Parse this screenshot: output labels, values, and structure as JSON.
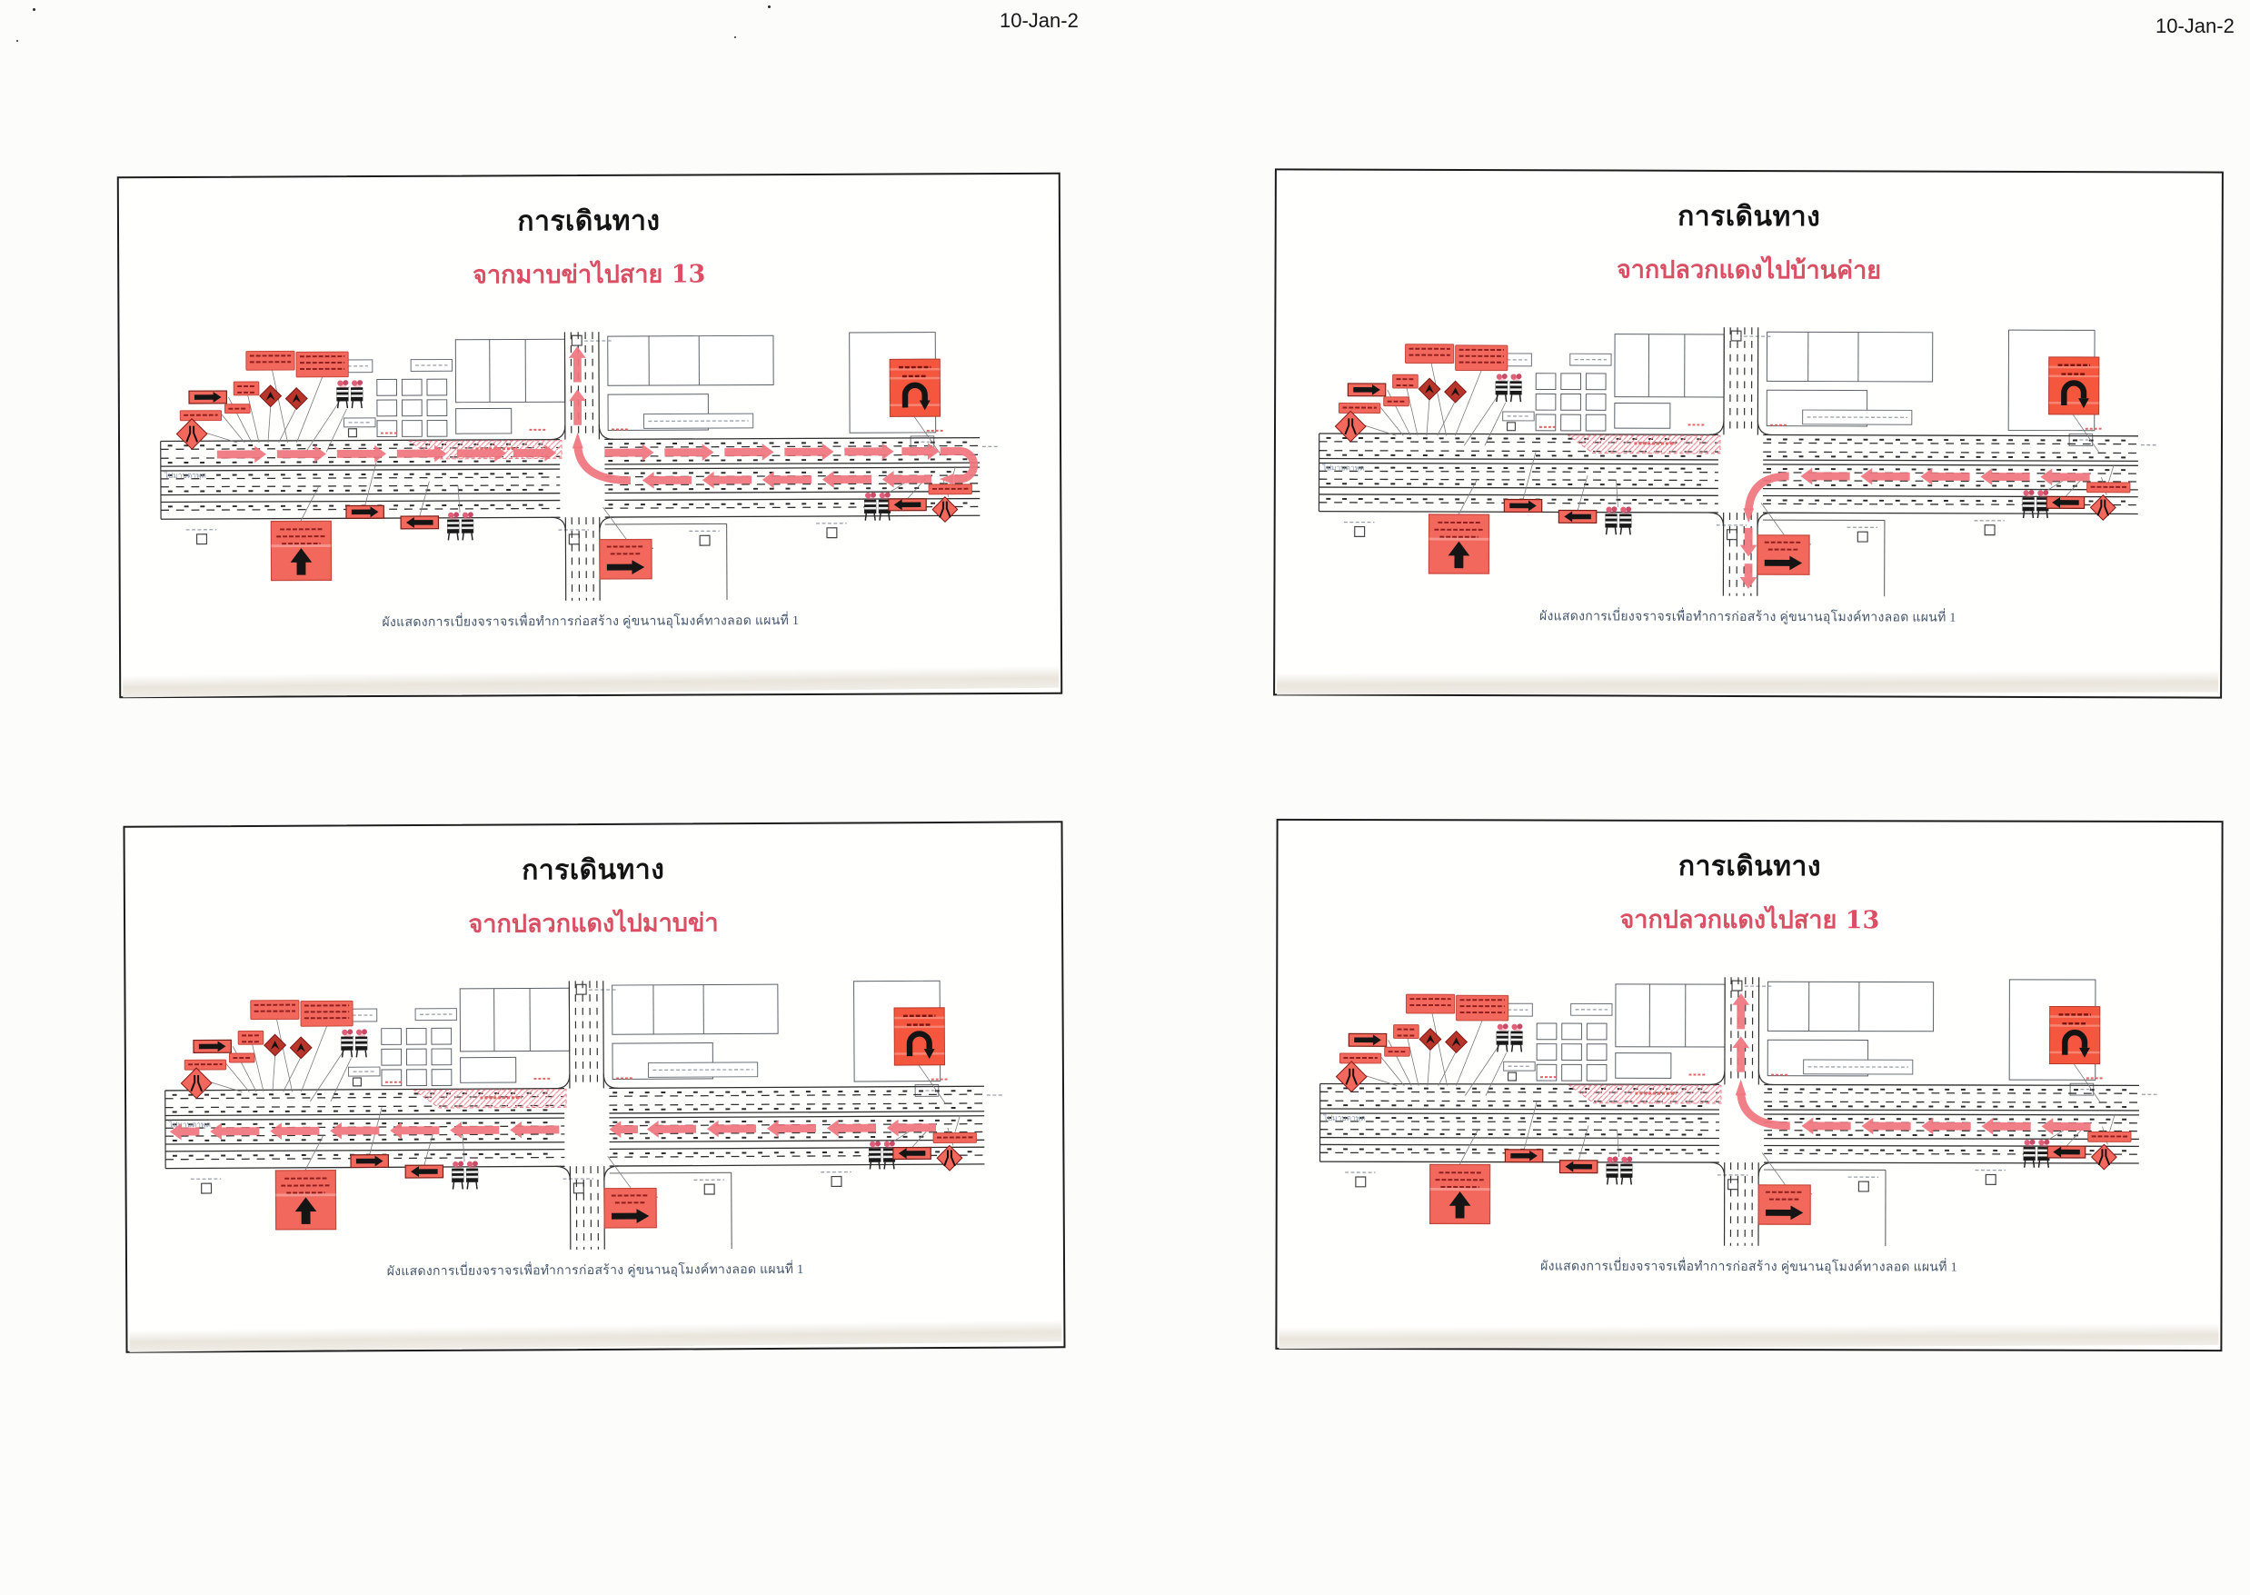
{
  "page": {
    "date_center": "10-Jan-2",
    "date_right": "10-Jan-2"
  },
  "panels": [
    {
      "title": "การเดินทาง",
      "subtitle": "จากมาบข่าไปสาย 13",
      "caption": "ผังแสดงการเบี่ยงจราจรเพื่อทำการก่อสร้าง คู่ขนานอุโมงค์ทางลอด แผนที่ 1",
      "route": "east-uturn-west-north"
    },
    {
      "title": "การเดินทาง",
      "subtitle": "จากปลวกแดงไปบ้านค่าย",
      "caption": "ผังแสดงการเบี่ยงจราจรเพื่อทำการก่อสร้าง คู่ขนานอุโมงค์ทางลอด แผนที่ 1",
      "route": "west-south"
    },
    {
      "title": "การเดินทาง",
      "subtitle": "จากปลวกแดงไปมาบข่า",
      "caption": "ผังแสดงการเบี่ยงจราจรเพื่อทำการก่อสร้าง คู่ขนานอุโมงค์ทางลอด แผนที่ 1",
      "route": "west-through"
    },
    {
      "title": "การเดินทาง",
      "subtitle": "จากปลวกแดงไปสาย 13",
      "caption": "ผังแสดงการเบี่ยงจราจรเพื่อทำการก่อสร้าง คู่ขนานอุโมงค์ทางลอด แผนที่ 1",
      "route": "west-north"
    }
  ],
  "diagram_labels": {
    "left_road": "ไปมาบตาพุด"
  },
  "colors": {
    "sign_salmon": "#f2685c",
    "sign_edge": "#c4473c",
    "sign_text": "#8f1f1f",
    "route_pink": "#f0757e",
    "uturn_sign": "#f4563e",
    "subtitle_red": "#d94f63",
    "caption_ink": "#44546a",
    "hatch_pink": "#ef8f9b"
  }
}
